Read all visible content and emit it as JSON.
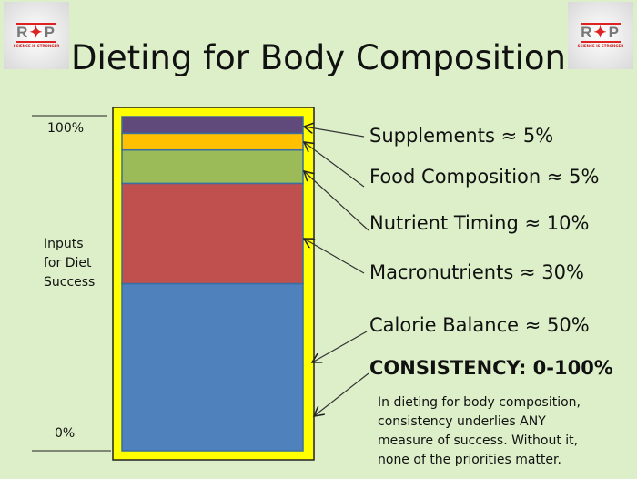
{
  "title": "Dieting for Body Composition",
  "logo": {
    "letters_left": "R",
    "letters_right": "P",
    "tagline": "SCIENCE IS STRONGER"
  },
  "axis": {
    "top": "100%",
    "bottom": "0%",
    "label_lines": [
      "Inputs",
      "for Diet",
      "Success"
    ]
  },
  "chart_data": {
    "type": "bar",
    "stacked": true,
    "title": "Dieting for Body Composition",
    "ylabel": "Inputs for Diet Success",
    "ylim": [
      0,
      100
    ],
    "series": [
      {
        "name": "Calorie Balance",
        "value": 50,
        "color": "#4f81bd"
      },
      {
        "name": "Macronutrients",
        "value": 30,
        "color": "#c0504d"
      },
      {
        "name": "Nutrient Timing",
        "value": 10,
        "color": "#9bbb59"
      },
      {
        "name": "Food Composition",
        "value": 5,
        "color": "#ffc000"
      },
      {
        "name": "Supplements",
        "value": 5,
        "color": "#604a7b"
      }
    ],
    "frame_color": "#ffff00"
  },
  "labels": {
    "supplements": "Supplements ≈ 5%",
    "food": "Food Composition ≈ 5%",
    "timing": "Nutrient Timing ≈ 10%",
    "macros": "Macronutrients ≈ 30%",
    "calories": "Calorie Balance ≈ 50%",
    "consistency": "CONSISTENCY: 0-100%"
  },
  "note_lines": [
    "In dieting for body composition,",
    "consistency underlies ANY",
    "measure of success. Without it,",
    "none of the priorities matter."
  ]
}
